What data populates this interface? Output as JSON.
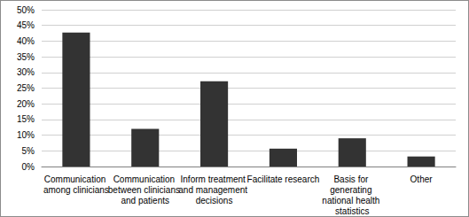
{
  "chart_data": {
    "type": "bar",
    "categories": [
      "Communication among clinicians",
      "Communication between clinicians and patients",
      "Inform treatment and management decisions",
      "Facilitate research",
      "Basis for generating national health statistics",
      "Other"
    ],
    "values": [
      42.7,
      12,
      27.2,
      5.7,
      9,
      3.2
    ],
    "color": "#333333",
    "ylim": [
      0,
      50
    ],
    "yticks": [
      {
        "value": 0,
        "label": "0%"
      },
      {
        "value": 5,
        "label": "5%"
      },
      {
        "value": 10,
        "label": "10%"
      },
      {
        "value": 15,
        "label": "15%"
      },
      {
        "value": 20,
        "label": "20%"
      },
      {
        "value": 25,
        "label": "25%"
      },
      {
        "value": 30,
        "label": "30%"
      },
      {
        "value": 35,
        "label": "35%"
      },
      {
        "value": 40,
        "label": "40%"
      },
      {
        "value": 45,
        "label": "45%"
      },
      {
        "value": 50,
        "label": "50%"
      }
    ],
    "grid": true
  }
}
